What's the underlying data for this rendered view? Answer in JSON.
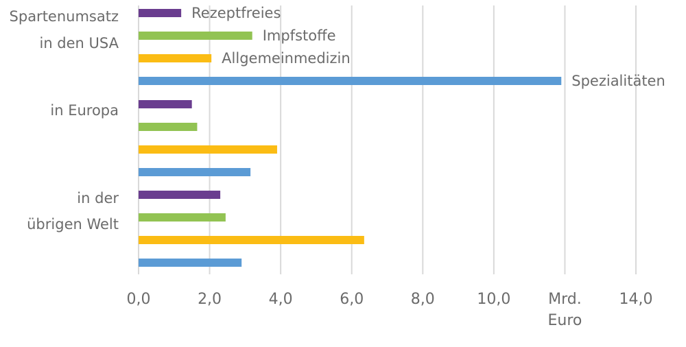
{
  "chart_data": {
    "type": "bar",
    "orientation": "horizontal",
    "groups": [
      {
        "label_lines": [
          "Spartenumsatz",
          "in den USA"
        ]
      },
      {
        "label_lines": [
          "in Europa"
        ]
      },
      {
        "label_lines": [
          "in der",
          "übrigen Welt"
        ]
      }
    ],
    "series": [
      {
        "name": "Rezeptfreies",
        "color": "#6a3d8f",
        "values": [
          1.2,
          1.5,
          2.3
        ]
      },
      {
        "name": "Impfstoffe",
        "color": "#92c353",
        "values": [
          3.2,
          1.65,
          2.45
        ]
      },
      {
        "name": "Allgemeinmedizin",
        "color": "#fbbc14",
        "values": [
          2.05,
          3.9,
          6.35
        ]
      },
      {
        "name": "Spezialitäten",
        "color": "#5b9bd5",
        "values": [
          11.9,
          3.15,
          2.9
        ]
      }
    ],
    "xlim": [
      0,
      14
    ],
    "ticks": [
      {
        "value": 0,
        "label": "0,0"
      },
      {
        "value": 2,
        "label": "2,0"
      },
      {
        "value": 4,
        "label": "4,0"
      },
      {
        "value": 6,
        "label": "6,0"
      },
      {
        "value": 8,
        "label": "8,0"
      },
      {
        "value": 10,
        "label": "10,0"
      },
      {
        "value": 12,
        "label": "Mrd.",
        "label2": "Euro"
      },
      {
        "value": 14,
        "label": "14,0"
      }
    ],
    "grid": true,
    "legend": "inline labels next to first group bars"
  }
}
